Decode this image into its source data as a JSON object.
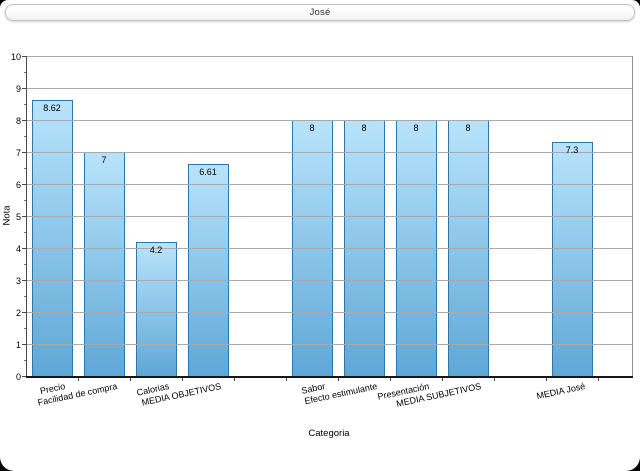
{
  "window": {
    "title": "José"
  },
  "chart_data": {
    "type": "bar",
    "title": "José",
    "xlabel": "Categoria",
    "ylabel": "Nota",
    "ylim": [
      0,
      10
    ],
    "y_major_step": 1,
    "y_minor_step": 0.5,
    "y_tick_labels": [
      "0",
      "1",
      "2",
      "3",
      "4",
      "5",
      "6",
      "7",
      "8",
      "9",
      "10"
    ],
    "grid": true,
    "legend": "none",
    "categories": [
      "Precio",
      "Facilidad de compra",
      "Calorias",
      "MEDIA OBJETIVOS",
      "",
      "Sabor",
      "Efecto estimulante",
      "Presentación",
      "MEDIA SUBJETIVOS",
      "",
      "MEDIA José"
    ],
    "values": [
      8.62,
      7,
      4.2,
      6.61,
      null,
      8,
      8,
      8,
      8,
      null,
      7.3
    ],
    "value_labels": [
      "8.62",
      "7",
      "4.2",
      "6.61",
      "",
      "8",
      "8",
      "8",
      "8",
      "",
      "7.3"
    ],
    "colors": {
      "bar_gradient_top": "#b9e3fb",
      "bar_gradient_bottom": "#5fa8d6",
      "bar_border": "#2e75a8",
      "gridline": "#a9a9a9",
      "axis": "#16161d",
      "value_label": "#000000"
    }
  }
}
